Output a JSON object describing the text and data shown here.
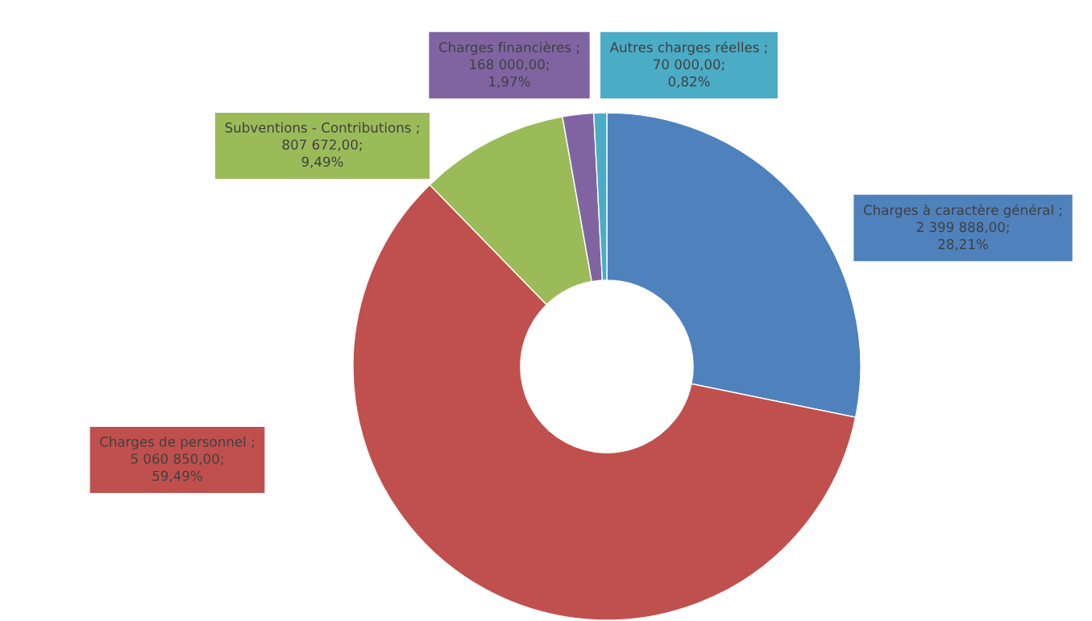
{
  "chart_data": {
    "type": "donut",
    "categories": [
      "Charges à caractère général",
      "Charges de personnel",
      "Subventions - Contributions",
      "Charges financières",
      "Autres charges réelles"
    ],
    "values": [
      2399888,
      5060850,
      807672,
      168000,
      70000
    ],
    "value_labels": [
      ";\n2 399 888,00;\n28,21%",
      ";\n5 060 850,00;\n59,49%",
      ";\n807 672,00;\n9,49%",
      ";\n168 000,00;\n1,97%",
      ";\n70 000,00;\n0,82%"
    ],
    "colors": [
      "#4f81bd",
      "#c0504d",
      "#9bbb59",
      "#8064a2",
      "#4bacc6"
    ],
    "legend": false
  }
}
